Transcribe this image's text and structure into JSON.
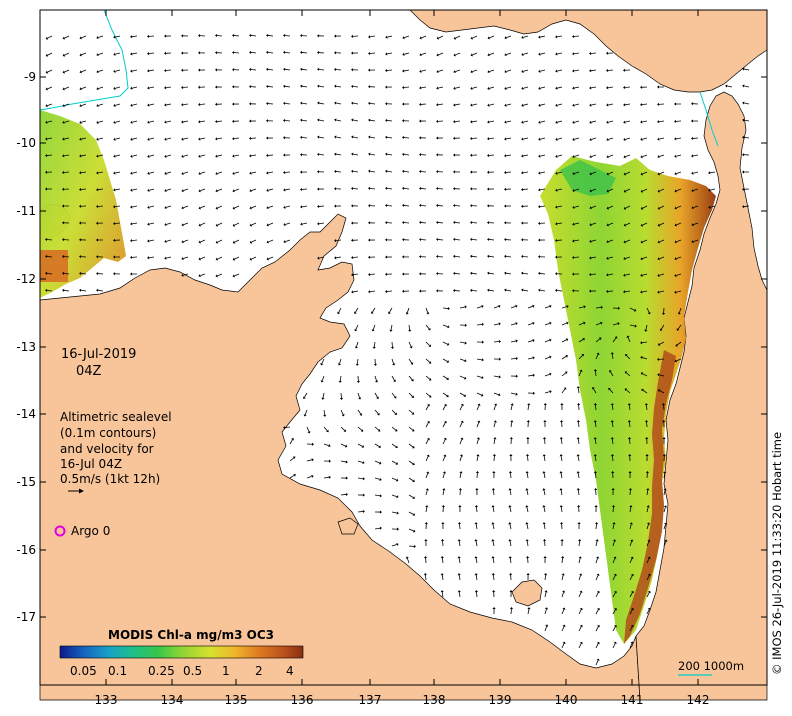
{
  "map": {
    "date_line1": "16-Jul-2019",
    "date_line2": "04Z",
    "legend_lines": [
      "Altimetric sealevel",
      "(0.1m contours)",
      "and velocity for",
      "16-Jul 04Z",
      "0.5m/s (1kt 12h)"
    ],
    "argo_label": "Argo 0",
    "colorbar_title": "MODIS Chl-a mg/m3 OC3",
    "colorbar_ticks": [
      "0.05",
      "0.1",
      "0.25",
      "0.5",
      "1",
      "2",
      "4"
    ],
    "scale_label": "200  1000m",
    "credit": "© IMOS 26-Jul-2019 11:33:20 Hobart time",
    "x_ticks": [
      "133",
      "134",
      "135",
      "136",
      "137",
      "138",
      "139",
      "140",
      "141",
      "142"
    ],
    "y_ticks": [
      "-9",
      "-10",
      "-11",
      "-12",
      "-13",
      "-14",
      "-15",
      "-16",
      "-17"
    ],
    "colors": {
      "land": "#f8c59a",
      "ocean": "#ffffff",
      "argo": "#e000e0",
      "scale_line": "#00cccc",
      "arrow": "#000000"
    },
    "colorbar_stops": [
      "#0b1a8c",
      "#1565c0",
      "#19a0c8",
      "#1fbf8a",
      "#35c64a",
      "#8ed534",
      "#d7e02e",
      "#f0b52a",
      "#de7a22",
      "#b9521c",
      "#8a2f12"
    ]
  }
}
